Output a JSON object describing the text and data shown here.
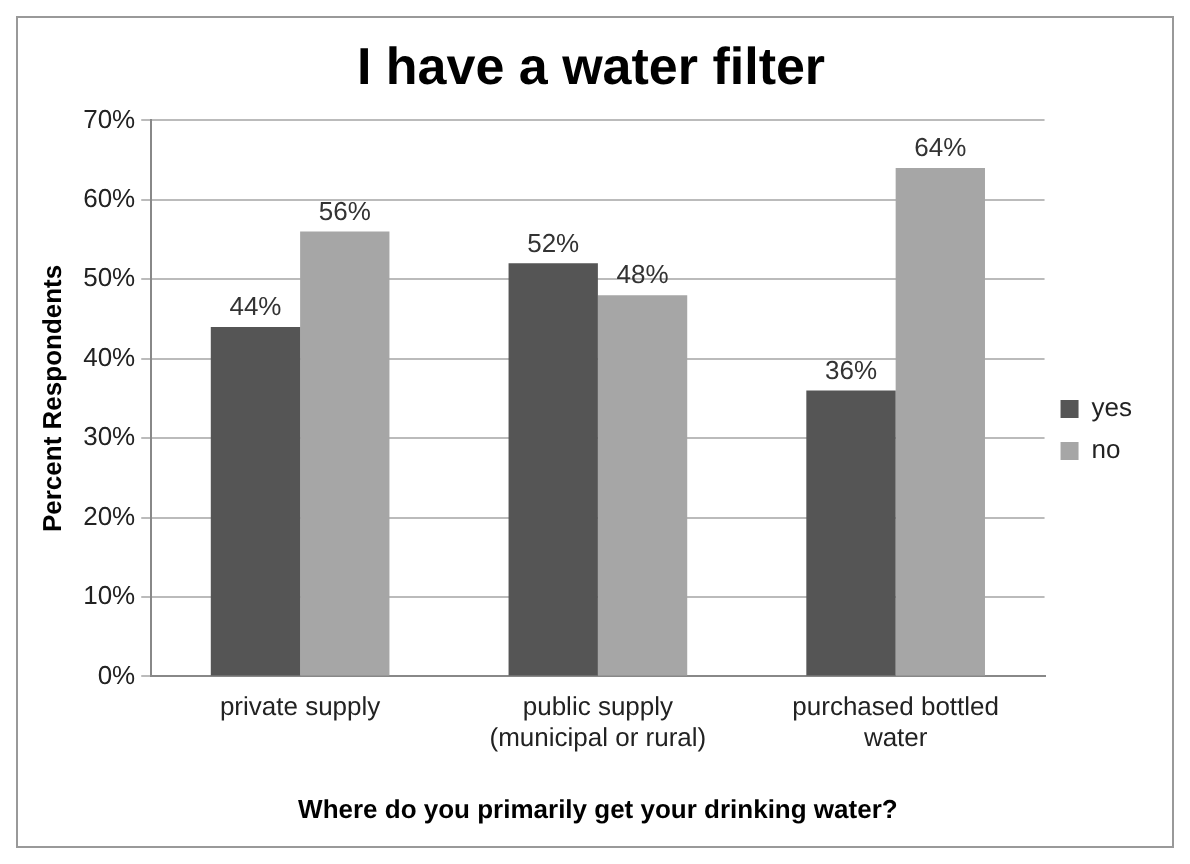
{
  "chart_data": {
    "type": "bar",
    "title": "I have a water filter",
    "xlabel": "Where do you primarily get your drinking water?",
    "ylabel": "Percent Respondents",
    "categories": [
      "private supply",
      "public supply (municipal or rural)",
      "purchased bottled water"
    ],
    "series": [
      {
        "name": "yes",
        "color": "#555555",
        "values": [
          44,
          52,
          36
        ],
        "value_labels": [
          "44%",
          "52%",
          "36%"
        ]
      },
      {
        "name": "no",
        "color": "#a6a6a6",
        "values": [
          56,
          48,
          64
        ],
        "value_labels": [
          "56%",
          "48%",
          "64%"
        ]
      }
    ],
    "ylim": [
      0,
      70
    ],
    "yticks": [
      {
        "value": 0,
        "label": "0%"
      },
      {
        "value": 10,
        "label": "10%"
      },
      {
        "value": 20,
        "label": "20%"
      },
      {
        "value": 30,
        "label": "30%"
      },
      {
        "value": 40,
        "label": "40%"
      },
      {
        "value": 50,
        "label": "50%"
      },
      {
        "value": 60,
        "label": "60%"
      },
      {
        "value": 70,
        "label": "70%"
      }
    ],
    "grid": "y",
    "legend": "right"
  }
}
